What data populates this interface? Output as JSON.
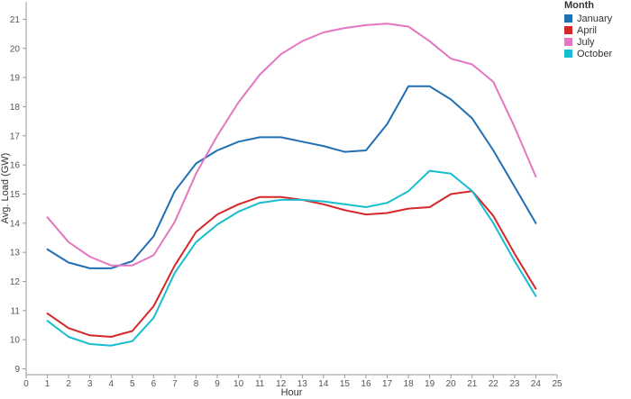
{
  "chart_data": {
    "type": "line",
    "xlabel": "Hour",
    "ylabel": "Avg. Load (GW)",
    "xlim": [
      0,
      25
    ],
    "ylim": [
      8.8,
      21.6
    ],
    "xticks": [
      0,
      1,
      2,
      3,
      4,
      5,
      6,
      7,
      8,
      9,
      10,
      11,
      12,
      13,
      14,
      15,
      16,
      17,
      18,
      19,
      20,
      21,
      22,
      23,
      24,
      25
    ],
    "yticks": [
      9,
      10,
      11,
      12,
      13,
      14,
      15,
      16,
      17,
      18,
      19,
      20,
      21
    ],
    "grid": false,
    "legend": {
      "title": "Month",
      "position": "top-right"
    },
    "x": [
      1,
      2,
      3,
      4,
      5,
      6,
      7,
      8,
      9,
      10,
      11,
      12,
      13,
      14,
      15,
      16,
      17,
      18,
      19,
      20,
      21,
      22,
      23,
      24
    ],
    "series": [
      {
        "name": "January",
        "color": "#1f6fb4",
        "values": [
          13.1,
          12.65,
          12.45,
          12.45,
          12.7,
          13.55,
          15.1,
          16.05,
          16.5,
          16.8,
          16.95,
          16.95,
          16.8,
          16.65,
          16.45,
          16.5,
          17.4,
          18.7,
          18.7,
          18.25,
          17.6,
          16.5,
          15.25,
          14.0
        ]
      },
      {
        "name": "April",
        "color": "#d62728",
        "values": [
          10.9,
          10.4,
          10.15,
          10.1,
          10.3,
          11.15,
          12.55,
          13.7,
          14.3,
          14.65,
          14.9,
          14.9,
          14.8,
          14.65,
          14.45,
          14.3,
          14.35,
          14.5,
          14.55,
          15.0,
          15.1,
          14.25,
          12.95,
          11.75
        ]
      },
      {
        "name": "July",
        "color": "#e377c2",
        "values": [
          14.2,
          13.35,
          12.85,
          12.55,
          12.55,
          12.9,
          14.05,
          15.7,
          17.0,
          18.15,
          19.1,
          19.8,
          20.25,
          20.55,
          20.7,
          20.8,
          20.85,
          20.75,
          20.25,
          19.65,
          19.45,
          18.85,
          17.3,
          15.6
        ]
      },
      {
        "name": "October",
        "color": "#17becf",
        "values": [
          10.65,
          10.1,
          9.85,
          9.8,
          9.95,
          10.75,
          12.3,
          13.35,
          13.95,
          14.4,
          14.7,
          14.8,
          14.8,
          14.75,
          14.65,
          14.55,
          14.7,
          15.1,
          15.8,
          15.7,
          15.1,
          14.0,
          12.7,
          11.5
        ]
      }
    ]
  }
}
